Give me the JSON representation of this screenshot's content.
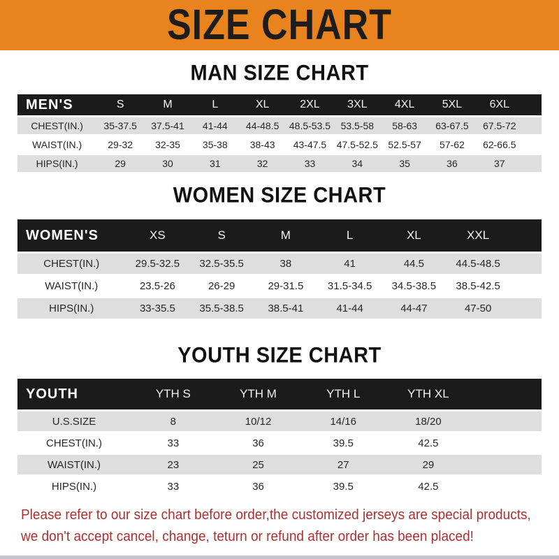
{
  "banner": {
    "title": "SIZE CHART"
  },
  "chart_data": [
    {
      "type": "table",
      "title": "MAN SIZE CHART",
      "header_label": "MEN'S",
      "columns": [
        "S",
        "M",
        "L",
        "XL",
        "2XL",
        "3XL",
        "4XL",
        "5XL",
        "6XL"
      ],
      "rows": [
        {
          "label": "CHEST(IN.)",
          "values": [
            "35-37.5",
            "37.5-41",
            "41-44",
            "44-48.5",
            "48.5-53.5",
            "53.5-58",
            "58-63",
            "63-67.5",
            "67.5-72"
          ]
        },
        {
          "label": "WAIST(IN.)",
          "values": [
            "29-32",
            "32-35",
            "35-38",
            "38-43",
            "43-47.5",
            "47.5-52.5",
            "52.5-57",
            "57-62",
            "62-66.5"
          ]
        },
        {
          "label": "HIPS(IN.)",
          "values": [
            "29",
            "30",
            "31",
            "32",
            "33",
            "34",
            "35",
            "36",
            "37"
          ]
        }
      ]
    },
    {
      "type": "table",
      "title": "WOMEN SIZE CHART",
      "header_label": "WOMEN'S",
      "columns": [
        "XS",
        "S",
        "M",
        "L",
        "XL",
        "XXL"
      ],
      "rows": [
        {
          "label": "CHEST(IN.)",
          "values": [
            "29.5-32.5",
            "32.5-35.5",
            "38",
            "41",
            "44.5",
            "44.5-48.5"
          ]
        },
        {
          "label": "WAIST(IN.)",
          "values": [
            "23.5-26",
            "26-29",
            "29-31.5",
            "31.5-34.5",
            "34.5-38.5",
            "38.5-42.5"
          ]
        },
        {
          "label": "HIPS(IN.)",
          "values": [
            "33-35.5",
            "35.5-38.5",
            "38.5-41",
            "41-44",
            "44-47",
            "47-50"
          ]
        }
      ]
    },
    {
      "type": "table",
      "title": "YOUTH SIZE CHART",
      "header_label": "YOUTH",
      "columns": [
        "YTH S",
        "YTH M",
        "YTH L",
        "YTH XL"
      ],
      "rows": [
        {
          "label": "U.S.SIZE",
          "values": [
            "8",
            "10/12",
            "14/16",
            "18/20"
          ]
        },
        {
          "label": "CHEST(IN.)",
          "values": [
            "33",
            "36",
            "39.5",
            "42.5"
          ]
        },
        {
          "label": "WAIST(IN.)",
          "values": [
            "23",
            "25",
            "27",
            "29"
          ]
        },
        {
          "label": "HIPS(IN.)",
          "values": [
            "33",
            "36",
            "39.5",
            "42.5"
          ]
        }
      ]
    }
  ],
  "footer": {
    "line1": "Please refer to our size chart before order,the customized jerseys are special products,",
    "line2": "we don't accept cancel, change, teturn or refund after order has been placed!"
  },
  "colors": {
    "banner_orange": "#E8831D",
    "header_bar_black": "#1B1B1B",
    "row_gray": "#DEDEDE",
    "row_white": "#FFFFFF",
    "footer_red": "#AD302E",
    "heading_black": "#111111"
  }
}
